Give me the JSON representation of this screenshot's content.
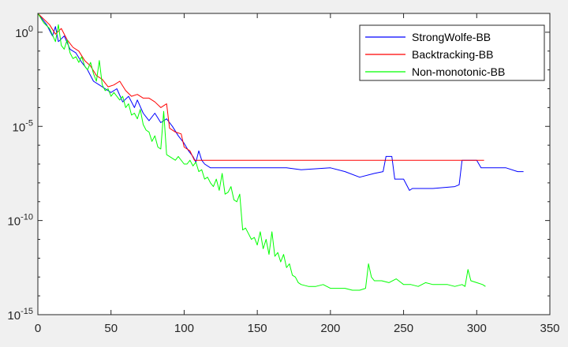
{
  "chart_data": {
    "type": "line",
    "title": "",
    "xlabel": "",
    "ylabel": "",
    "xlim": [
      0,
      350
    ],
    "ylim_log10": [
      -15,
      1
    ],
    "y_scale": "log",
    "grid": false,
    "legend_position": "top-right",
    "x_ticks": [
      {
        "value": 0,
        "label": "0"
      },
      {
        "value": 50,
        "label": "50"
      },
      {
        "value": 100,
        "label": "100"
      },
      {
        "value": 150,
        "label": "150"
      },
      {
        "value": 200,
        "label": "200"
      },
      {
        "value": 250,
        "label": "250"
      },
      {
        "value": 300,
        "label": "300"
      },
      {
        "value": 350,
        "label": "350"
      }
    ],
    "y_ticks": [
      {
        "exp": 0,
        "base": "10",
        "power": "0"
      },
      {
        "exp": -5,
        "base": "10",
        "power": "-5"
      },
      {
        "exp": -10,
        "base": "10",
        "power": "-10"
      },
      {
        "exp": -15,
        "base": "10",
        "power": "-15"
      }
    ],
    "series": [
      {
        "name": "StrongWolfe-BB",
        "color": "#0000ff",
        "points": [
          [
            0,
            1
          ],
          [
            6,
            0.4
          ],
          [
            10,
            -0.2
          ],
          [
            12,
            0.3
          ],
          [
            14,
            -0.5
          ],
          [
            18,
            -0.2
          ],
          [
            22,
            -0.9
          ],
          [
            26,
            -1.1
          ],
          [
            30,
            -1.6
          ],
          [
            34,
            -2.0
          ],
          [
            38,
            -2.6
          ],
          [
            42,
            -2.8
          ],
          [
            46,
            -3.0
          ],
          [
            50,
            -3.2
          ],
          [
            54,
            -3.0
          ],
          [
            58,
            -3.7
          ],
          [
            62,
            -3.4
          ],
          [
            66,
            -4.0
          ],
          [
            68,
            -3.6
          ],
          [
            72,
            -4.3
          ],
          [
            76,
            -4.7
          ],
          [
            80,
            -4.3
          ],
          [
            84,
            -4.8
          ],
          [
            88,
            -4.6
          ],
          [
            92,
            -5.0
          ],
          [
            96,
            -5.5
          ],
          [
            100,
            -5.9
          ],
          [
            103,
            -6.3
          ],
          [
            106,
            -6.6
          ],
          [
            108,
            -6.9
          ],
          [
            110,
            -6.3
          ],
          [
            112,
            -6.8
          ],
          [
            114,
            -7.0
          ],
          [
            118,
            -7.2
          ],
          [
            130,
            -7.2
          ],
          [
            150,
            -7.2
          ],
          [
            170,
            -7.2
          ],
          [
            180,
            -7.3
          ],
          [
            200,
            -7.2
          ],
          [
            210,
            -7.4
          ],
          [
            220,
            -7.7
          ],
          [
            230,
            -7.5
          ],
          [
            236,
            -7.4
          ],
          [
            238,
            -6.6
          ],
          [
            242,
            -6.6
          ],
          [
            244,
            -7.8
          ],
          [
            250,
            -7.8
          ],
          [
            254,
            -8.4
          ],
          [
            256,
            -8.3
          ],
          [
            270,
            -8.3
          ],
          [
            285,
            -8.2
          ],
          [
            288,
            -8.1
          ],
          [
            290,
            -6.8
          ],
          [
            300,
            -6.8
          ],
          [
            303,
            -7.2
          ],
          [
            310,
            -7.2
          ],
          [
            320,
            -7.2
          ],
          [
            328,
            -7.4
          ],
          [
            332,
            -7.4
          ]
        ]
      },
      {
        "name": "Backtracking-BB",
        "color": "#ff0000",
        "points": [
          [
            0,
            1
          ],
          [
            8,
            0.4
          ],
          [
            12,
            -0.1
          ],
          [
            16,
            0.2
          ],
          [
            20,
            -0.4
          ],
          [
            24,
            -0.8
          ],
          [
            28,
            -1.0
          ],
          [
            32,
            -1.5
          ],
          [
            36,
            -1.8
          ],
          [
            40,
            -2.3
          ],
          [
            44,
            -2.5
          ],
          [
            48,
            -2.9
          ],
          [
            52,
            -2.8
          ],
          [
            56,
            -2.6
          ],
          [
            60,
            -3.1
          ],
          [
            64,
            -3.4
          ],
          [
            68,
            -3.3
          ],
          [
            72,
            -3.5
          ],
          [
            76,
            -3.5
          ],
          [
            80,
            -3.7
          ],
          [
            84,
            -4.0
          ],
          [
            88,
            -3.8
          ],
          [
            90,
            -5.1
          ],
          [
            94,
            -5.3
          ],
          [
            98,
            -5.4
          ],
          [
            100,
            -6.1
          ],
          [
            104,
            -6.3
          ],
          [
            107,
            -6.8
          ],
          [
            120,
            -6.8
          ],
          [
            150,
            -6.8
          ],
          [
            200,
            -6.8
          ],
          [
            250,
            -6.8
          ],
          [
            280,
            -6.8
          ],
          [
            300,
            -6.8
          ],
          [
            305,
            -6.8
          ]
        ]
      },
      {
        "name": "Non-monotonic-BB",
        "color": "#00ff00",
        "points": [
          [
            0,
            1
          ],
          [
            4,
            0.5
          ],
          [
            8,
            0.2
          ],
          [
            12,
            -0.5
          ],
          [
            14,
            0.4
          ],
          [
            16,
            -0.7
          ],
          [
            18,
            -0.9
          ],
          [
            20,
            -0.4
          ],
          [
            22,
            -1.1
          ],
          [
            24,
            -1.4
          ],
          [
            26,
            -1.3
          ],
          [
            28,
            -1.6
          ],
          [
            30,
            -1.3
          ],
          [
            32,
            -1.8
          ],
          [
            34,
            -2.0
          ],
          [
            36,
            -1.6
          ],
          [
            38,
            -2.2
          ],
          [
            40,
            -2.6
          ],
          [
            42,
            -1.5
          ],
          [
            44,
            -2.8
          ],
          [
            46,
            -3.1
          ],
          [
            48,
            -3.0
          ],
          [
            50,
            -3.4
          ],
          [
            52,
            -3.2
          ],
          [
            54,
            -3.4
          ],
          [
            56,
            -3.6
          ],
          [
            58,
            -3.4
          ],
          [
            60,
            -4.0
          ],
          [
            62,
            -3.8
          ],
          [
            64,
            -4.4
          ],
          [
            66,
            -4.3
          ],
          [
            68,
            -4.6
          ],
          [
            70,
            -4.1
          ],
          [
            72,
            -4.9
          ],
          [
            74,
            -5.2
          ],
          [
            76,
            -5.3
          ],
          [
            78,
            -5.8
          ],
          [
            80,
            -5.5
          ],
          [
            82,
            -6.1
          ],
          [
            84,
            -6.2
          ],
          [
            86,
            -4.2
          ],
          [
            88,
            -6.5
          ],
          [
            90,
            -6.6
          ],
          [
            94,
            -6.8
          ],
          [
            96,
            -6.6
          ],
          [
            100,
            -7.0
          ],
          [
            102,
            -7.0
          ],
          [
            104,
            -6.8
          ],
          [
            106,
            -7.1
          ],
          [
            108,
            -6.9
          ],
          [
            110,
            -7.4
          ],
          [
            112,
            -7.3
          ],
          [
            114,
            -7.8
          ],
          [
            116,
            -7.7
          ],
          [
            118,
            -8.0
          ],
          [
            120,
            -8.2
          ],
          [
            122,
            -7.8
          ],
          [
            124,
            -8.4
          ],
          [
            126,
            -7.5
          ],
          [
            128,
            -8.6
          ],
          [
            130,
            -8.5
          ],
          [
            132,
            -8.2
          ],
          [
            134,
            -8.9
          ],
          [
            136,
            -9.0
          ],
          [
            138,
            -8.6
          ],
          [
            140,
            -10.5
          ],
          [
            142,
            -10.4
          ],
          [
            144,
            -10.7
          ],
          [
            146,
            -11.0
          ],
          [
            148,
            -10.9
          ],
          [
            150,
            -11.3
          ],
          [
            152,
            -10.6
          ],
          [
            154,
            -11.5
          ],
          [
            156,
            -11.0
          ],
          [
            158,
            -11.8
          ],
          [
            160,
            -10.6
          ],
          [
            162,
            -11.9
          ],
          [
            164,
            -11.7
          ],
          [
            166,
            -12.2
          ],
          [
            168,
            -11.8
          ],
          [
            170,
            -12.5
          ],
          [
            172,
            -12.3
          ],
          [
            174,
            -12.9
          ],
          [
            176,
            -13.0
          ],
          [
            178,
            -13.3
          ],
          [
            180,
            -13.4
          ],
          [
            185,
            -13.5
          ],
          [
            190,
            -13.5
          ],
          [
            195,
            -13.4
          ],
          [
            200,
            -13.6
          ],
          [
            205,
            -13.6
          ],
          [
            210,
            -13.6
          ],
          [
            215,
            -13.7
          ],
          [
            220,
            -13.7
          ],
          [
            224,
            -13.6
          ],
          [
            226,
            -12.3
          ],
          [
            228,
            -13.0
          ],
          [
            230,
            -13.2
          ],
          [
            235,
            -13.2
          ],
          [
            240,
            -13.3
          ],
          [
            245,
            -13.1
          ],
          [
            250,
            -13.4
          ],
          [
            255,
            -13.4
          ],
          [
            260,
            -13.5
          ],
          [
            265,
            -13.3
          ],
          [
            270,
            -13.4
          ],
          [
            275,
            -13.4
          ],
          [
            280,
            -13.4
          ],
          [
            285,
            -13.5
          ],
          [
            290,
            -13.4
          ],
          [
            292,
            -13.5
          ],
          [
            294,
            -12.6
          ],
          [
            296,
            -13.2
          ],
          [
            300,
            -13.3
          ],
          [
            304,
            -13.4
          ],
          [
            306,
            -13.5
          ]
        ]
      }
    ]
  }
}
